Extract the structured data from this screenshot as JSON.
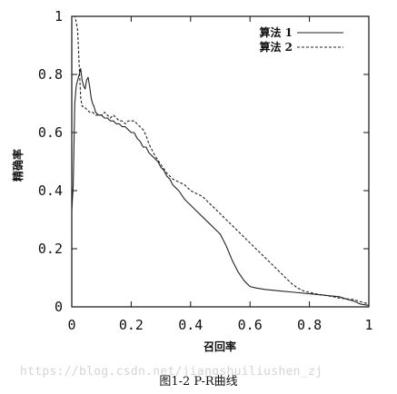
{
  "chart_data": {
    "type": "line",
    "title": "",
    "xlabel": "召回率",
    "ylabel": "精确率",
    "xlim": [
      0,
      1
    ],
    "ylim": [
      0,
      1
    ],
    "x_ticks": [
      {
        "value": 0,
        "label": "0"
      },
      {
        "value": 0.2,
        "label": "0.2"
      },
      {
        "value": 0.4,
        "label": "0.4"
      },
      {
        "value": 0.6,
        "label": "0.6"
      },
      {
        "value": 0.8,
        "label": "0.8"
      },
      {
        "value": 1,
        "label": "1"
      }
    ],
    "y_ticks": [
      {
        "value": 0,
        "label": "0"
      },
      {
        "value": 0.2,
        "label": "0.2"
      },
      {
        "value": 0.4,
        "label": "0.4"
      },
      {
        "value": 0.6,
        "label": "0.6"
      },
      {
        "value": 0.8,
        "label": "0.8"
      },
      {
        "value": 1,
        "label": "1"
      }
    ],
    "grid": false,
    "legend_position": "top-right",
    "series": [
      {
        "name": "算法 1",
        "style": "solid",
        "color": "#222222",
        "x": [
          0,
          0.005,
          0.01,
          0.015,
          0.02,
          0.025,
          0.03,
          0.035,
          0.04,
          0.045,
          0.05,
          0.055,
          0.06,
          0.065,
          0.07,
          0.075,
          0.08,
          0.09,
          0.1,
          0.11,
          0.12,
          0.13,
          0.14,
          0.15,
          0.16,
          0.17,
          0.18,
          0.19,
          0.2,
          0.21,
          0.22,
          0.23,
          0.24,
          0.25,
          0.26,
          0.27,
          0.28,
          0.29,
          0.3,
          0.31,
          0.32,
          0.33,
          0.34,
          0.35,
          0.36,
          0.38,
          0.4,
          0.42,
          0.44,
          0.46,
          0.48,
          0.5,
          0.52,
          0.54,
          0.56,
          0.58,
          0.6,
          0.62,
          0.65,
          0.7,
          0.75,
          0.8,
          0.85,
          0.9,
          0.93,
          0.95,
          0.97,
          1.0
        ],
        "y": [
          0.33,
          0.42,
          0.7,
          0.76,
          0.78,
          0.8,
          0.82,
          0.78,
          0.76,
          0.75,
          0.78,
          0.79,
          0.76,
          0.72,
          0.7,
          0.69,
          0.67,
          0.66,
          0.66,
          0.65,
          0.65,
          0.64,
          0.64,
          0.63,
          0.63,
          0.62,
          0.62,
          0.61,
          0.6,
          0.6,
          0.58,
          0.57,
          0.55,
          0.55,
          0.53,
          0.52,
          0.51,
          0.5,
          0.48,
          0.47,
          0.45,
          0.44,
          0.42,
          0.41,
          0.4,
          0.37,
          0.35,
          0.33,
          0.31,
          0.29,
          0.27,
          0.25,
          0.21,
          0.16,
          0.12,
          0.09,
          0.07,
          0.065,
          0.06,
          0.055,
          0.05,
          0.045,
          0.04,
          0.035,
          0.025,
          0.02,
          0.01,
          0.005
        ]
      },
      {
        "name": "算法 2",
        "style": "dashed",
        "color": "#222222",
        "x": [
          0.005,
          0.01,
          0.015,
          0.02,
          0.022,
          0.025,
          0.03,
          0.035,
          0.04,
          0.05,
          0.06,
          0.07,
          0.08,
          0.09,
          0.1,
          0.11,
          0.12,
          0.13,
          0.14,
          0.15,
          0.16,
          0.17,
          0.18,
          0.19,
          0.2,
          0.21,
          0.22,
          0.23,
          0.24,
          0.25,
          0.26,
          0.28,
          0.3,
          0.32,
          0.34,
          0.36,
          0.38,
          0.4,
          0.42,
          0.44,
          0.46,
          0.48,
          0.5,
          0.52,
          0.54,
          0.56,
          0.58,
          0.6,
          0.62,
          0.64,
          0.66,
          0.68,
          0.7,
          0.72,
          0.74,
          0.76,
          0.78,
          0.8,
          0.82,
          0.85,
          0.88,
          0.9,
          0.92,
          0.95,
          0.97,
          1.0
        ],
        "y": [
          1.0,
          1.0,
          0.98,
          0.95,
          0.9,
          0.83,
          0.72,
          0.69,
          0.69,
          0.68,
          0.67,
          0.67,
          0.66,
          0.66,
          0.66,
          0.67,
          0.66,
          0.65,
          0.66,
          0.65,
          0.64,
          0.64,
          0.63,
          0.64,
          0.64,
          0.64,
          0.63,
          0.62,
          0.61,
          0.59,
          0.56,
          0.52,
          0.49,
          0.46,
          0.44,
          0.43,
          0.42,
          0.4,
          0.39,
          0.38,
          0.36,
          0.34,
          0.32,
          0.3,
          0.28,
          0.26,
          0.24,
          0.22,
          0.2,
          0.18,
          0.16,
          0.14,
          0.12,
          0.1,
          0.08,
          0.065,
          0.055,
          0.05,
          0.045,
          0.04,
          0.035,
          0.03,
          0.028,
          0.025,
          0.018,
          0.01
        ]
      }
    ]
  },
  "watermark": "https://blog.csdn.net/jiangshuiliushen_zj",
  "caption": "图1-2   P-R曲线"
}
